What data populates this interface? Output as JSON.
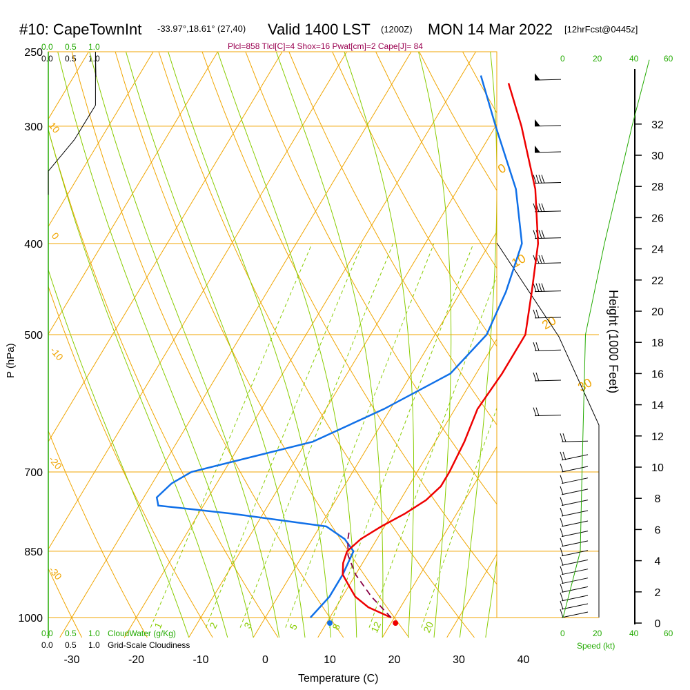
{
  "header": {
    "station": "#10: CapeTownInt",
    "coords": "-33.97°,18.61° (27,40)",
    "valid": "Valid 1400 LST",
    "utc": "(1200Z)",
    "date": "MON 14 Mar 2022",
    "forecast": "[12hrFcst@0445z]",
    "indices": "Plcl=858 Tlcl[C]=4 Shox=16 Pwat[cm]=2 Cape[J]= 84"
  },
  "colors": {
    "isotherm": "#f0a500",
    "adiabat": "#88cc00",
    "mixing": "#88cc00",
    "temperature": "#ee0000",
    "dewpoint": "#1070e8",
    "parcel": "#880044",
    "green_text": "#22aa00",
    "subtitle": "#9a0050"
  },
  "labels": {
    "xlabel": "Temperature (C)",
    "ylabel": "P (hPa)",
    "height_label": "Height (1000 Feet)",
    "cloud_water": "CloudWater (g/Kg)",
    "cloudiness": "Grid-Scale Cloudiness",
    "speed": "Speed (kt)"
  },
  "top_scales": {
    "green": [
      "0.0",
      "0.5",
      "1.0"
    ],
    "black": [
      "0.0",
      "0.5",
      "1.0"
    ],
    "speed_top": [
      "0",
      "20",
      "40",
      "60"
    ]
  },
  "bottom_scales": {
    "green": [
      "0.0",
      "0.5",
      "1.0"
    ],
    "black": [
      "0.0",
      "0.5",
      "1.0"
    ],
    "speed_bottom": [
      "0",
      "20",
      "40",
      "60"
    ]
  },
  "adiabat_labels": [
    "0",
    "10",
    "20",
    "30"
  ],
  "mixing_labels": [
    "1",
    "2",
    "3",
    "5",
    "8",
    "12",
    "20"
  ],
  "isotherm_labels": [
    "10",
    "0",
    "-10",
    "-20",
    "-30"
  ],
  "chart_data": {
    "type": "line",
    "pressure_ticks": [
      "250",
      "300",
      "400",
      "500",
      "700",
      "850",
      "1000"
    ],
    "temperature_ticks": [
      "-30",
      "-20",
      "-10",
      "0",
      "10",
      "20",
      "30",
      "40"
    ],
    "height_ticks": [
      "0",
      "2",
      "4",
      "6",
      "8",
      "10",
      "12",
      "14",
      "16",
      "18",
      "20",
      "22",
      "24",
      "26",
      "28",
      "30",
      "32"
    ],
    "xlim": [
      -33,
      41
    ],
    "ylim": [
      1025,
      250
    ],
    "temperature_profile": [
      [
        1000,
        19.5
      ],
      [
        975,
        15
      ],
      [
        950,
        12
      ],
      [
        925,
        10
      ],
      [
        900,
        8
      ],
      [
        875,
        7
      ],
      [
        850,
        6.5
      ],
      [
        825,
        7.5
      ],
      [
        800,
        9.5
      ],
      [
        775,
        12
      ],
      [
        750,
        14
      ],
      [
        725,
        15
      ],
      [
        700,
        15
      ],
      [
        650,
        14.5
      ],
      [
        600,
        13.5
      ],
      [
        550,
        14
      ],
      [
        500,
        14
      ],
      [
        450,
        11
      ],
      [
        400,
        7.5
      ],
      [
        350,
        2
      ],
      [
        300,
        -6
      ],
      [
        270,
        -12
      ]
    ],
    "dewpoint_profile": [
      [
        1000,
        7
      ],
      [
        975,
        7.5
      ],
      [
        950,
        8
      ],
      [
        900,
        8
      ],
      [
        850,
        7.5
      ],
      [
        825,
        5
      ],
      [
        800,
        1
      ],
      [
        775,
        -15
      ],
      [
        760,
        -27
      ],
      [
        745,
        -28
      ],
      [
        720,
        -27
      ],
      [
        700,
        -25
      ],
      [
        650,
        -9
      ],
      [
        600,
        -1
      ],
      [
        550,
        6
      ],
      [
        500,
        8
      ],
      [
        450,
        7
      ],
      [
        400,
        5
      ],
      [
        350,
        -1
      ],
      [
        300,
        -10
      ],
      [
        265,
        -17
      ]
    ],
    "parcel_profile": [
      [
        1000,
        19.5
      ],
      [
        950,
        14.5
      ],
      [
        900,
        10
      ],
      [
        858,
        7
      ],
      [
        825,
        5.5
      ],
      [
        810,
        5
      ]
    ],
    "surface_temperature": 20.5,
    "surface_dewpoint": 10,
    "cloudiness_profile": [
      [
        250,
        0.9
      ],
      [
        285,
        0.9
      ],
      [
        310,
        0.5
      ],
      [
        335,
        0.0
      ],
      [
        355,
        0.0
      ]
    ],
    "wind_speed_profile": [
      [
        1000,
        0
      ],
      [
        850,
        10
      ],
      [
        700,
        11
      ],
      [
        500,
        13
      ],
      [
        400,
        24
      ],
      [
        300,
        40
      ],
      [
        255,
        50
      ]
    ]
  }
}
